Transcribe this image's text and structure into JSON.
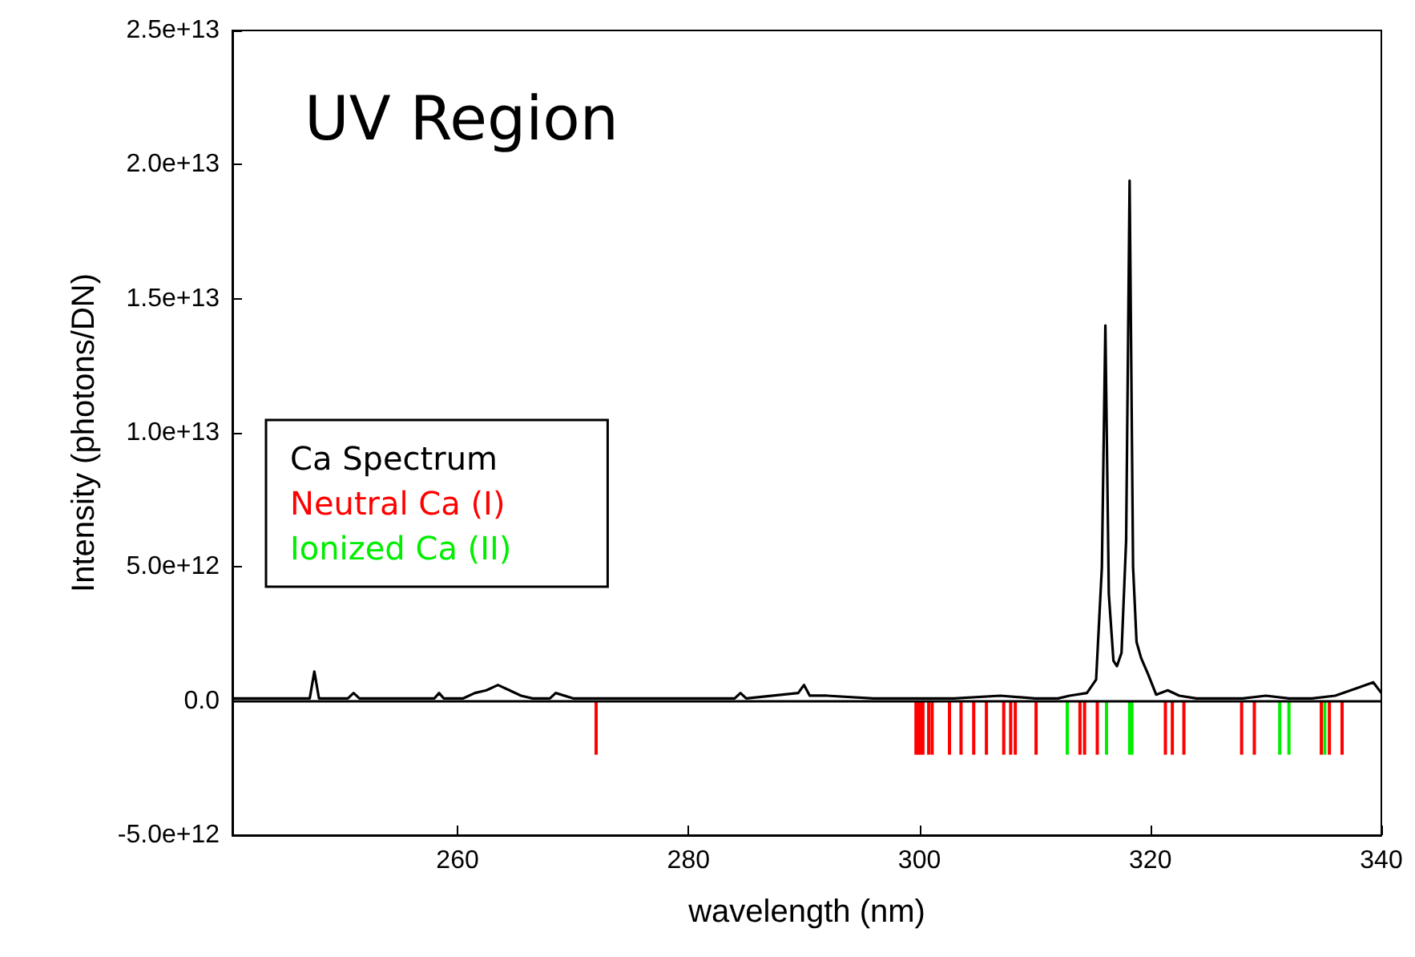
{
  "chart_data": {
    "type": "line",
    "xlabel": "wavelength (nm)",
    "ylabel": "Intensity (photons/DN)",
    "annotations": [
      "UV Region"
    ],
    "xlim": [
      240.5,
      340
    ],
    "xticks": [
      260,
      280,
      300,
      320,
      340
    ],
    "ylim": [
      -5000000000000.0,
      25000000000000.0
    ],
    "yticks": [
      {
        "value": -5000000000000.0,
        "label": "-5.0e+12"
      },
      {
        "value": 0,
        "label": "0.0"
      },
      {
        "value": 5000000000000.0,
        "label": "5.0e+12"
      },
      {
        "value": 10000000000000.0,
        "label": "1.0e+13"
      },
      {
        "value": 15000000000000.0,
        "label": "1.5e+13"
      },
      {
        "value": 20000000000000.0,
        "label": "2.0e+13"
      },
      {
        "value": 25000000000000.0,
        "label": "2.5e+13"
      }
    ],
    "grid": false,
    "legend": "left",
    "ref_lines": [
      {
        "axis": "y",
        "value": 0,
        "color": "#000000"
      }
    ],
    "marker": "none",
    "line_style": "solid",
    "series": [
      {
        "name": "Ca Spectrum",
        "color": "#000000",
        "x": [
          240.5,
          245,
          247.2,
          247.6,
          248,
          250.5,
          251,
          251.5,
          258,
          258.4,
          258.8,
          260.5,
          261.5,
          262.5,
          263.5,
          264.5,
          265.5,
          266.5,
          268,
          268.5,
          270,
          275,
          280,
          284,
          284.5,
          285,
          289.5,
          290,
          290.5,
          292,
          296,
          300,
          303,
          307,
          310,
          312,
          313,
          314.5,
          315.3,
          315.8,
          316.1,
          316.4,
          316.8,
          317.1,
          317.5,
          317.9,
          318.2,
          318.5,
          318.8,
          319.2,
          319.8,
          320.5,
          321.5,
          322.5,
          324,
          328,
          330,
          332,
          334,
          336,
          338,
          339.3,
          340
        ],
        "values": [
          100000000000.0,
          100000000000.0,
          100000000000.0,
          1100000000000.0,
          100000000000.0,
          100000000000.0,
          300000000000.0,
          100000000000.0,
          100000000000.0,
          300000000000.0,
          100000000000.0,
          100000000000.0,
          300000000000.0,
          400000000000.0,
          600000000000.0,
          400000000000.0,
          200000000000.0,
          100000000000.0,
          100000000000.0,
          300000000000.0,
          100000000000.0,
          100000000000.0,
          100000000000.0,
          100000000000.0,
          300000000000.0,
          100000000000.0,
          300000000000.0,
          600000000000.0,
          200000000000.0,
          200000000000.0,
          100000000000.0,
          100000000000.0,
          100000000000.0,
          200000000000.0,
          100000000000.0,
          100000000000.0,
          200000000000.0,
          300000000000.0,
          800000000000.0,
          5000000000000.0,
          14000000000000.0,
          4000000000000.0,
          1500000000000.0,
          1300000000000.0,
          1800000000000.0,
          6000000000000.0,
          19400000000000.0,
          5000000000000.0,
          2200000000000.0,
          1600000000000.0,
          1000000000000.0,
          240000000000.0,
          400000000000.0,
          200000000000.0,
          100000000000.0,
          100000000000.0,
          200000000000.0,
          100000000000.0,
          100000000000.0,
          200000000000.0,
          500000000000.0,
          700000000000.0,
          300000000000.0
        ]
      },
      {
        "name": "Neutral Ca (I)",
        "color": "#ff0000",
        "type": "bar",
        "x": [
          272.0,
          299.7,
          299.9,
          300.1,
          300.3,
          300.8,
          301.1,
          302.6,
          303.6,
          304.7,
          305.8,
          307.3,
          307.9,
          308.3,
          310.1,
          313.9,
          314.3,
          315.4,
          321.3,
          321.9,
          322.9,
          327.9,
          329.0,
          334.8,
          335.5,
          336.6
        ],
        "values": [
          -2000000000000.0,
          -2000000000000.0,
          -2000000000000.0,
          -2000000000000.0,
          -2000000000000.0,
          -2000000000000.0,
          -2000000000000.0,
          -2000000000000.0,
          -2000000000000.0,
          -2000000000000.0,
          -2000000000000.0,
          -2000000000000.0,
          -2000000000000.0,
          -2000000000000.0,
          -2000000000000.0,
          -2000000000000.0,
          -2000000000000.0,
          -2000000000000.0,
          -2000000000000.0,
          -2000000000000.0,
          -2000000000000.0,
          -2000000000000.0,
          -2000000000000.0,
          -2000000000000.0,
          -2000000000000.0,
          -2000000000000.0
        ]
      },
      {
        "name": "Ionized Ca (II)",
        "color": "#00ee00",
        "type": "bar",
        "x": [
          312.8,
          316.2,
          318.2,
          318.4,
          331.2,
          332.0,
          335.1
        ],
        "values": [
          -2000000000000.0,
          -2000000000000.0,
          -2000000000000.0,
          -2000000000000.0,
          -2000000000000.0,
          -2000000000000.0,
          -2000000000000.0
        ]
      }
    ]
  }
}
